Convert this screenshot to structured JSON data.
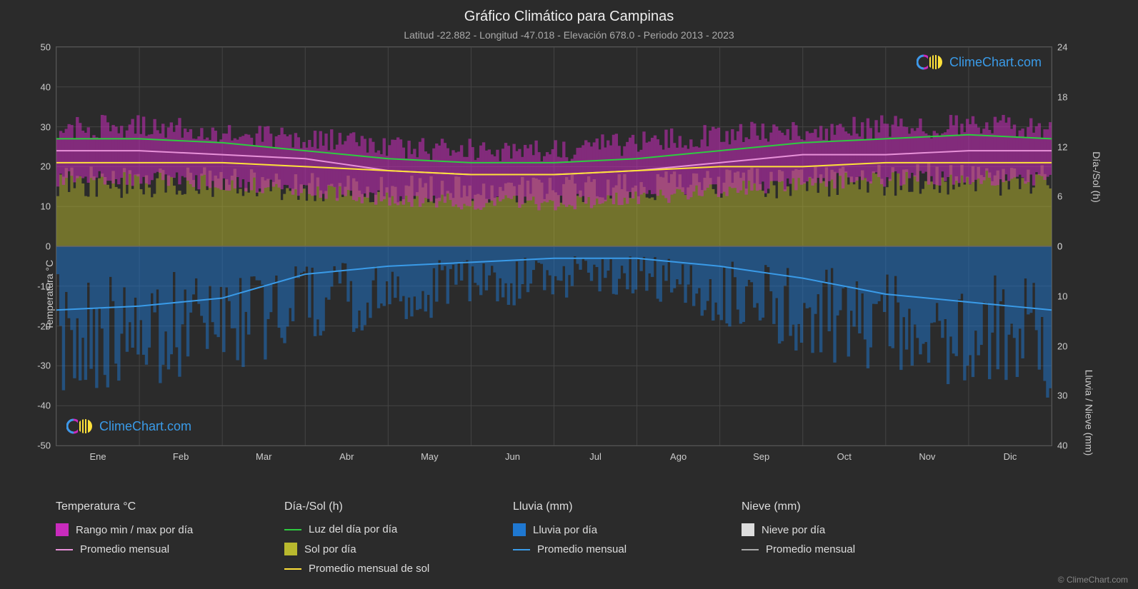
{
  "title": "Gráfico Climático para Campinas",
  "subtitle": "Latitud -22.882 - Longitud -47.018 - Elevación 678.0 - Periodo 2013 - 2023",
  "copyright": "© ClimeChart.com",
  "watermark_text": "ClimeChart.com",
  "axes": {
    "left_label": "Temperatura °C",
    "right_top_label": "Día-/Sol (h)",
    "right_bottom_label": "Lluvia / Nieve (mm)",
    "left_ticks": [
      50,
      40,
      30,
      20,
      10,
      0,
      -10,
      -20,
      -30,
      -40,
      -50
    ],
    "right_top_ticks": [
      24,
      18,
      12,
      6,
      0
    ],
    "right_bottom_ticks": [
      0,
      10,
      20,
      30,
      40
    ],
    "x_labels": [
      "Ene",
      "Feb",
      "Mar",
      "Abr",
      "May",
      "Jun",
      "Jul",
      "Ago",
      "Sep",
      "Oct",
      "Nov",
      "Dic"
    ]
  },
  "colors": {
    "background": "#2b2b2b",
    "grid": "#444444",
    "text": "#dddddd",
    "temp_range": "#c92bbd",
    "temp_avg": "#e891d9",
    "daylight": "#2ecc40",
    "sun_bars": "#b9b92e",
    "sun_avg": "#ffe13a",
    "rain_bars": "#1f78d1",
    "rain_avg": "#3a9be8",
    "snow_bars": "#dddddd",
    "snow_avg": "#aaaaaa"
  },
  "legend": {
    "groups": [
      {
        "header": "Temperatura °C",
        "items": [
          {
            "type": "box",
            "color": "#c92bbd",
            "label": "Rango min / max por día"
          },
          {
            "type": "line",
            "color": "#e891d9",
            "label": "Promedio mensual"
          }
        ]
      },
      {
        "header": "Día-/Sol (h)",
        "items": [
          {
            "type": "line",
            "color": "#2ecc40",
            "label": "Luz del día por día"
          },
          {
            "type": "box",
            "color": "#b9b92e",
            "label": "Sol por día"
          },
          {
            "type": "line",
            "color": "#ffe13a",
            "label": "Promedio mensual de sol"
          }
        ]
      },
      {
        "header": "Lluvia (mm)",
        "items": [
          {
            "type": "box",
            "color": "#1f78d1",
            "label": "Lluvia por día"
          },
          {
            "type": "line",
            "color": "#3a9be8",
            "label": "Promedio mensual"
          }
        ]
      },
      {
        "header": "Nieve (mm)",
        "items": [
          {
            "type": "box",
            "color": "#dddddd",
            "label": "Nieve por día"
          },
          {
            "type": "line",
            "color": "#aaaaaa",
            "label": "Promedio mensual"
          }
        ]
      }
    ]
  },
  "chart": {
    "type": "climate-composite",
    "temp_min_band": [
      17,
      17,
      16,
      14,
      12,
      11,
      11,
      12,
      14,
      16,
      17,
      17
    ],
    "temp_max_band": [
      30,
      30,
      29,
      27,
      25,
      24,
      24,
      26,
      28,
      29,
      30,
      30
    ],
    "temp_avg_line": [
      24,
      24,
      23,
      22,
      19,
      18,
      18,
      19,
      21,
      23,
      23,
      24
    ],
    "daylight_line": [
      27,
      27,
      26,
      24,
      22,
      21,
      21,
      22,
      24,
      26,
      27,
      28
    ],
    "sun_avg_line": [
      21,
      21,
      21,
      20,
      19,
      18,
      18,
      19,
      20,
      20,
      21,
      21
    ],
    "sun_max_bars": [
      21,
      20,
      20,
      19,
      18,
      18,
      18,
      19,
      20,
      20,
      21,
      21
    ],
    "rain_avg_line": [
      -16,
      -15,
      -13,
      -7,
      -5,
      -4,
      -3,
      -3,
      -5,
      -8,
      -12,
      -14
    ],
    "rain_max_bars": [
      -35,
      -32,
      -30,
      -22,
      -18,
      -15,
      -12,
      -12,
      -18,
      -25,
      -30,
      -33
    ],
    "ylim_left": [
      -50,
      50
    ],
    "ylim_right_top": [
      0,
      24
    ],
    "ylim_right_bottom": [
      40,
      0
    ],
    "grid_step_left": 10,
    "background_color": "#2b2b2b",
    "grid_color": "#444444"
  }
}
